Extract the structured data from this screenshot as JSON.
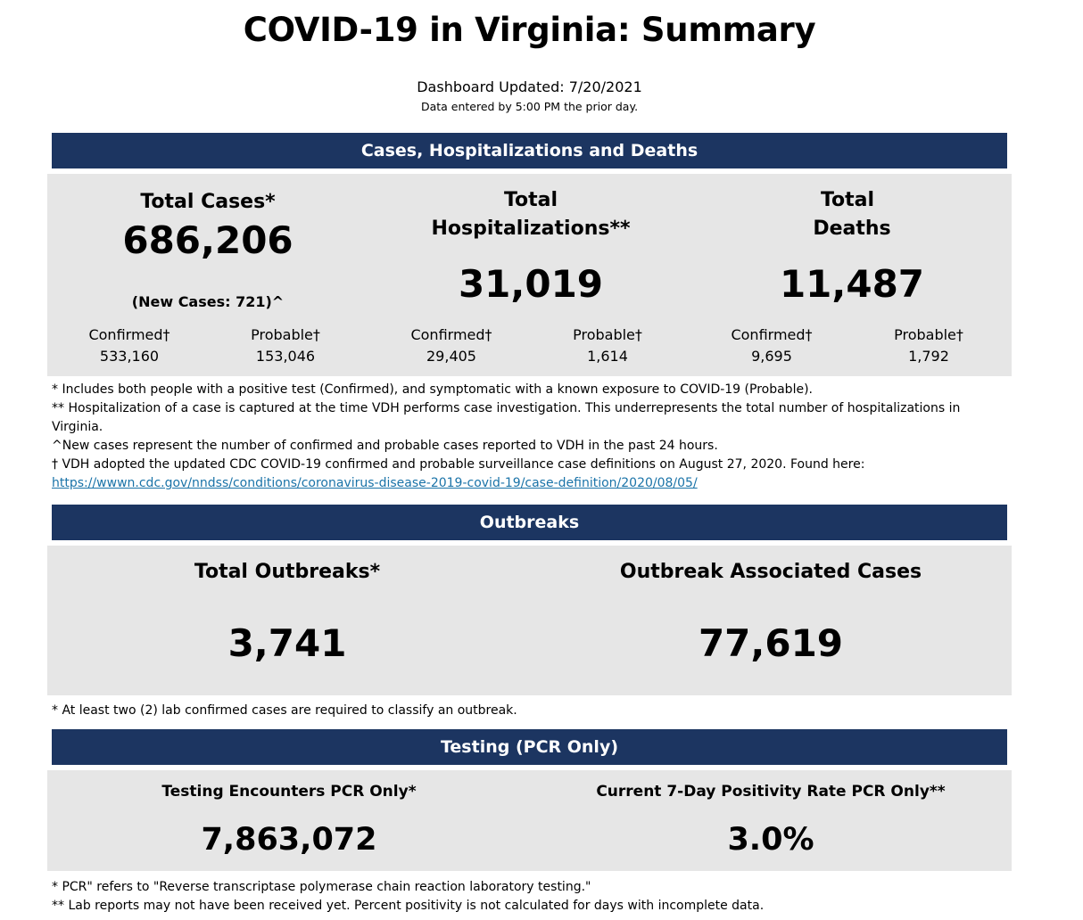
{
  "page_title": "COVID-19 in Virginia: Summary",
  "updated": "Dashboard Updated: 7/20/2021",
  "updated_note": "Data entered by 5:00 PM the prior day.",
  "cases_section": {
    "header": "Cases, Hospitalizations and Deaths",
    "total_cases": {
      "label": "Total Cases*",
      "value": "686,206",
      "new_cases": "(New Cases: 721)^",
      "confirmed_label": "Confirmed†",
      "confirmed_value": "533,160",
      "probable_label": "Probable†",
      "probable_value": "153,046"
    },
    "hospitalizations": {
      "label_line1": "Total",
      "label_line2": "Hospitalizations**",
      "value": "31,019",
      "confirmed_label": "Confirmed†",
      "confirmed_value": "29,405",
      "probable_label": "Probable†",
      "probable_value": "1,614"
    },
    "deaths": {
      "label_line1": "Total",
      "label_line2": "Deaths",
      "value": "11,487",
      "confirmed_label": "Confirmed†",
      "confirmed_value": "9,695",
      "probable_label": "Probable†",
      "probable_value": "1,792"
    },
    "notes": {
      "n1": "* Includes both people with a positive test (Confirmed), and symptomatic with a known exposure to COVID-19 (Probable).",
      "n2": "** Hospitalization of a case is captured at the time VDH performs case investigation. This underrepresents the total number of hospitalizations in Virginia.",
      "n3": "^New cases represent the number of confirmed and probable cases reported to VDH in the past 24 hours.",
      "n4_prefix": "† VDH adopted the updated CDC COVID-19 confirmed and probable surveillance case definitions on August 27, 2020. Found here: ",
      "n4_link": "https://wwwn.cdc.gov/nndss/conditions/coronavirus-disease-2019-covid-19/case-definition/2020/08/05/"
    }
  },
  "outbreaks_section": {
    "header": "Outbreaks",
    "total_label": "Total Outbreaks*",
    "total_value": "3,741",
    "assoc_label": "Outbreak Associated Cases",
    "assoc_value": "77,619",
    "note": "* At least two (2) lab confirmed cases are required to classify an outbreak."
  },
  "testing_section": {
    "header": "Testing (PCR Only)",
    "encounters_label": "Testing Encounters PCR Only*",
    "encounters_value": "7,863,072",
    "positivity_label": "Current 7-Day Positivity Rate PCR Only**",
    "positivity_value": "3.0%",
    "note1": "* PCR\" refers to \"Reverse transcriptase polymerase chain reaction laboratory testing.\"",
    "note2": "** Lab reports may not have been received yet. Percent positivity is not calculated for days with incomplete data."
  }
}
